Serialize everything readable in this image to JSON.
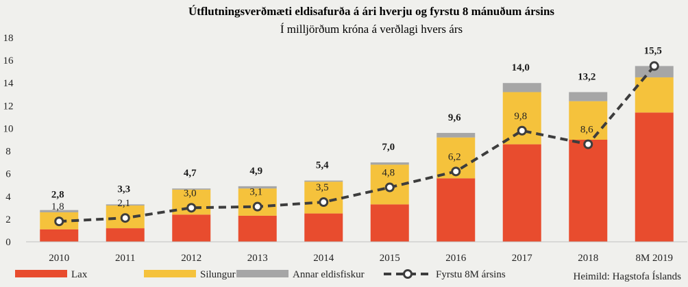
{
  "chart_data": {
    "type": "bar",
    "title": "Útflutningsverðmæti eldisafurða á ári hverju og fyrstu 8 mánuðum ársins",
    "subtitle": "Í milljörðum króna á verðlagi hvers árs",
    "categories": [
      "2010",
      "2011",
      "2012",
      "2013",
      "2014",
      "2015",
      "2016",
      "2017",
      "2018",
      "8M 2019"
    ],
    "series": [
      {
        "name": "Lax",
        "color": "#e84c2e",
        "values": [
          1.1,
          1.2,
          2.4,
          2.3,
          2.5,
          3.3,
          5.6,
          8.6,
          9.0,
          11.4
        ]
      },
      {
        "name": "Silungur",
        "color": "#f5c23c",
        "values": [
          1.5,
          2.0,
          2.2,
          2.4,
          2.8,
          3.5,
          3.6,
          4.6,
          3.4,
          3.1
        ]
      },
      {
        "name": "Annar eldisfiskur",
        "color": "#a6a6a6",
        "values": [
          0.2,
          0.1,
          0.1,
          0.2,
          0.1,
          0.2,
          0.4,
          0.8,
          0.8,
          1.0
        ]
      }
    ],
    "totals": [
      "2,8",
      "3,3",
      "4,7",
      "4,9",
      "5,4",
      "7,0",
      "9,6",
      "14,0",
      "13,2",
      "15,5"
    ],
    "line_series": {
      "name": "Fyrstu 8M ársins",
      "color": "#3d3d3d",
      "values": [
        1.8,
        2.1,
        3.0,
        3.1,
        3.5,
        4.8,
        6.2,
        9.8,
        8.6,
        15.5
      ],
      "labels": [
        "1,8",
        "2,1",
        "3,0",
        "3,1",
        "3,5",
        "4,8",
        "6,2",
        "9,8",
        "8,6",
        ""
      ]
    },
    "y_ticks": [
      "0",
      "2",
      "4",
      "6",
      "8",
      "10",
      "12",
      "14",
      "16",
      "18"
    ],
    "ylim": [
      0,
      18
    ],
    "xlabel": "",
    "ylabel": "",
    "grid": false,
    "legend": "bottom"
  },
  "source": "Heimild:  Hagstofa Íslands"
}
